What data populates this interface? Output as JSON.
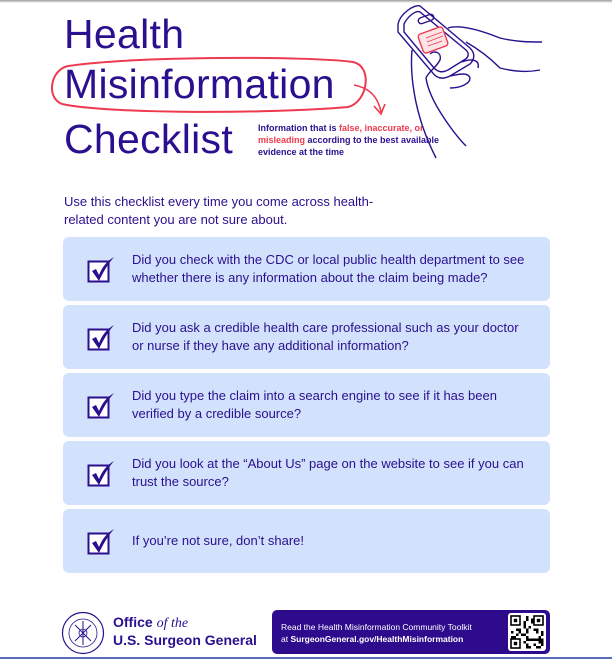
{
  "title": {
    "line1": "Health",
    "line2": "Misinformation",
    "line3": "Checklist"
  },
  "definition": {
    "part1": "Information that is ",
    "part2": "false, inaccurate, or misleading",
    "part3": " according to the best available evidence at the time"
  },
  "intro": "Use this checklist every time you come across health-related content you are not sure about.",
  "checklist": [
    {
      "text": "Did you check with the CDC or local public health department to see whether there is any information about the claim being made?",
      "checked": true
    },
    {
      "text": "Did you ask a credible health care professional such as your doctor or nurse if they have any additional information?",
      "checked": true
    },
    {
      "text": "Did you type the claim into a search engine to see if it has been verified by a credible source?",
      "checked": true
    },
    {
      "text": "Did you look at the “About Us” page on the website to see if you can trust the source?",
      "checked": true
    },
    {
      "text": "If you’re not sure, don’t share!",
      "checked": true
    }
  ],
  "footer": {
    "office_line1a": "Office ",
    "office_line1b": "of the",
    "office_line2": "U.S. Surgeon General",
    "seal_text": "PUBLIC HEALTH SERVICE 1798",
    "banner_line1": "Read the Health Misinformation Community Toolkit",
    "banner_line2_prefix": "at ",
    "banner_line2_link": "SurgeonGeneral.gov/HealthMisinformation"
  },
  "colors": {
    "primary": "#2a0f8f",
    "accent_red": "#ee3a4f",
    "box_fill": "#d3e2fc",
    "banner": "#2d0b8c"
  },
  "icons": [
    "phone-hands-illustration",
    "checkbox-checked-icon",
    "seal-icon",
    "qr-code-icon"
  ]
}
